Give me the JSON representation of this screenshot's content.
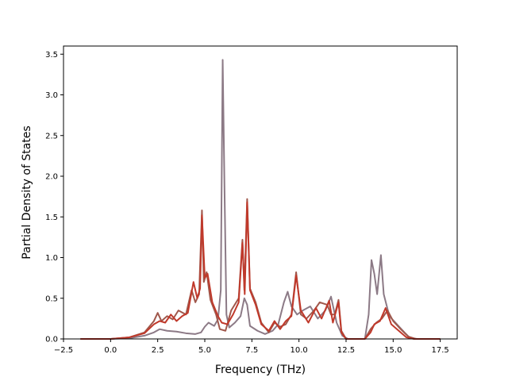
{
  "chart_data": {
    "type": "line",
    "title": "",
    "xlabel": "Frequency (THz)",
    "ylabel": "Partial Density of States",
    "xlim": [
      -2.5,
      18.4
    ],
    "ylim": [
      0,
      3.6
    ],
    "xticks": [
      "−2.5",
      "0.0",
      "2.5",
      "5.0",
      "7.5",
      "10.0",
      "12.5",
      "15.0",
      "17.5"
    ],
    "yticks": [
      "0.0",
      "0.5",
      "1.0",
      "1.5",
      "2.0",
      "2.5",
      "3.0",
      "3.5"
    ],
    "grid": false,
    "legend": "none",
    "series": [
      {
        "color": "#8c7a86",
        "points": [
          [
            -1.6,
            0.0
          ],
          [
            0.0,
            0.0
          ],
          [
            1.0,
            0.01
          ],
          [
            1.8,
            0.04
          ],
          [
            2.3,
            0.08
          ],
          [
            2.6,
            0.12
          ],
          [
            3.0,
            0.1
          ],
          [
            3.5,
            0.09
          ],
          [
            4.0,
            0.07
          ],
          [
            4.5,
            0.06
          ],
          [
            4.8,
            0.08
          ],
          [
            5.0,
            0.15
          ],
          [
            5.2,
            0.2
          ],
          [
            5.5,
            0.16
          ],
          [
            5.7,
            0.24
          ],
          [
            5.85,
            0.6
          ],
          [
            5.95,
            3.43
          ],
          [
            6.05,
            1.8
          ],
          [
            6.15,
            0.3
          ],
          [
            6.3,
            0.14
          ],
          [
            6.6,
            0.2
          ],
          [
            6.9,
            0.28
          ],
          [
            7.1,
            0.5
          ],
          [
            7.25,
            0.42
          ],
          [
            7.4,
            0.16
          ],
          [
            7.8,
            0.1
          ],
          [
            8.2,
            0.06
          ],
          [
            8.6,
            0.1
          ],
          [
            8.9,
            0.18
          ],
          [
            9.2,
            0.45
          ],
          [
            9.4,
            0.58
          ],
          [
            9.6,
            0.4
          ],
          [
            9.9,
            0.3
          ],
          [
            10.2,
            0.35
          ],
          [
            10.6,
            0.4
          ],
          [
            11.0,
            0.25
          ],
          [
            11.4,
            0.35
          ],
          [
            11.7,
            0.52
          ],
          [
            12.0,
            0.2
          ],
          [
            12.3,
            0.04
          ],
          [
            12.6,
            0.0
          ],
          [
            13.5,
            0.0
          ],
          [
            13.7,
            0.3
          ],
          [
            13.85,
            0.97
          ],
          [
            14.0,
            0.8
          ],
          [
            14.15,
            0.55
          ],
          [
            14.35,
            1.03
          ],
          [
            14.5,
            0.55
          ],
          [
            14.8,
            0.28
          ],
          [
            15.2,
            0.18
          ],
          [
            15.6,
            0.08
          ],
          [
            15.9,
            0.01
          ],
          [
            16.3,
            0.0
          ],
          [
            17.5,
            0.0
          ]
        ]
      },
      {
        "color": "#a0584c",
        "points": [
          [
            -1.6,
            0.0
          ],
          [
            0.0,
            0.0
          ],
          [
            1.0,
            0.02
          ],
          [
            1.8,
            0.08
          ],
          [
            2.3,
            0.22
          ],
          [
            2.5,
            0.32
          ],
          [
            2.7,
            0.22
          ],
          [
            3.0,
            0.28
          ],
          [
            3.3,
            0.24
          ],
          [
            3.6,
            0.35
          ],
          [
            4.0,
            0.3
          ],
          [
            4.3,
            0.6
          ],
          [
            4.5,
            0.45
          ],
          [
            4.7,
            0.55
          ],
          [
            4.85,
            1.58
          ],
          [
            4.95,
            0.7
          ],
          [
            5.1,
            0.82
          ],
          [
            5.3,
            0.48
          ],
          [
            5.6,
            0.3
          ],
          [
            5.8,
            0.12
          ],
          [
            6.1,
            0.1
          ],
          [
            6.4,
            0.35
          ],
          [
            6.8,
            0.5
          ],
          [
            7.0,
            1.22
          ],
          [
            7.1,
            0.6
          ],
          [
            7.25,
            1.72
          ],
          [
            7.4,
            0.62
          ],
          [
            7.7,
            0.45
          ],
          [
            8.0,
            0.2
          ],
          [
            8.4,
            0.08
          ],
          [
            8.7,
            0.2
          ],
          [
            9.0,
            0.15
          ],
          [
            9.3,
            0.18
          ],
          [
            9.6,
            0.3
          ],
          [
            9.85,
            0.82
          ],
          [
            10.1,
            0.3
          ],
          [
            10.4,
            0.25
          ],
          [
            10.8,
            0.35
          ],
          [
            11.1,
            0.45
          ],
          [
            11.5,
            0.42
          ],
          [
            11.7,
            0.3
          ],
          [
            11.9,
            0.3
          ],
          [
            12.1,
            0.48
          ],
          [
            12.25,
            0.1
          ],
          [
            12.5,
            0.0
          ],
          [
            13.5,
            0.0
          ],
          [
            13.8,
            0.12
          ],
          [
            14.1,
            0.2
          ],
          [
            14.4,
            0.25
          ],
          [
            14.7,
            0.35
          ],
          [
            15.0,
            0.22
          ],
          [
            15.4,
            0.12
          ],
          [
            15.8,
            0.03
          ],
          [
            16.2,
            0.0
          ],
          [
            17.5,
            0.0
          ]
        ]
      },
      {
        "color": "#c0392b",
        "points": [
          [
            -1.6,
            0.0
          ],
          [
            0.0,
            0.0
          ],
          [
            1.0,
            0.02
          ],
          [
            1.8,
            0.07
          ],
          [
            2.3,
            0.18
          ],
          [
            2.6,
            0.22
          ],
          [
            2.9,
            0.2
          ],
          [
            3.2,
            0.3
          ],
          [
            3.5,
            0.22
          ],
          [
            3.8,
            0.28
          ],
          [
            4.1,
            0.32
          ],
          [
            4.4,
            0.7
          ],
          [
            4.6,
            0.5
          ],
          [
            4.75,
            0.62
          ],
          [
            4.85,
            1.52
          ],
          [
            5.0,
            0.75
          ],
          [
            5.15,
            0.8
          ],
          [
            5.4,
            0.45
          ],
          [
            5.7,
            0.28
          ],
          [
            5.9,
            0.2
          ],
          [
            6.2,
            0.18
          ],
          [
            6.5,
            0.3
          ],
          [
            6.8,
            0.45
          ],
          [
            7.0,
            1.18
          ],
          [
            7.12,
            0.55
          ],
          [
            7.25,
            1.68
          ],
          [
            7.4,
            0.6
          ],
          [
            7.7,
            0.42
          ],
          [
            8.0,
            0.18
          ],
          [
            8.4,
            0.1
          ],
          [
            8.7,
            0.22
          ],
          [
            9.0,
            0.12
          ],
          [
            9.3,
            0.22
          ],
          [
            9.6,
            0.28
          ],
          [
            9.85,
            0.78
          ],
          [
            10.1,
            0.35
          ],
          [
            10.5,
            0.2
          ],
          [
            10.9,
            0.38
          ],
          [
            11.2,
            0.25
          ],
          [
            11.6,
            0.47
          ],
          [
            11.8,
            0.2
          ],
          [
            12.1,
            0.45
          ],
          [
            12.25,
            0.08
          ],
          [
            12.5,
            0.0
          ],
          [
            13.5,
            0.0
          ],
          [
            13.8,
            0.08
          ],
          [
            14.0,
            0.18
          ],
          [
            14.3,
            0.22
          ],
          [
            14.6,
            0.38
          ],
          [
            14.9,
            0.18
          ],
          [
            15.3,
            0.1
          ],
          [
            15.7,
            0.02
          ],
          [
            16.1,
            0.0
          ],
          [
            17.5,
            0.0
          ]
        ]
      }
    ]
  }
}
